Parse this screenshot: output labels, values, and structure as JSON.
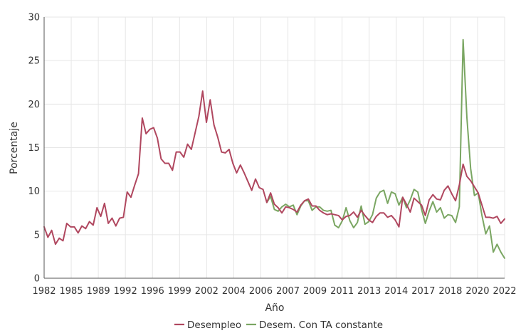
{
  "chart_data": {
    "type": "line",
    "title": "",
    "xlabel": "Año",
    "ylabel": "Porcentaje",
    "ylim": [
      0,
      30
    ],
    "yticks": [
      0,
      5,
      10,
      15,
      20,
      25,
      30
    ],
    "xticks": [
      "1982",
      "1985",
      "1989",
      "1992",
      "1996",
      "1999",
      "2002",
      "2004",
      "2006",
      "2007",
      "2009",
      "2011",
      "2013",
      "2014",
      "2017",
      "2018",
      "2020",
      "2022"
    ],
    "grid": true,
    "legend_position": "bottom",
    "series": [
      {
        "name": "Desempleo",
        "color": "#b0475f",
        "values": [
          5.9,
          4.7,
          5.5,
          3.9,
          4.6,
          4.3,
          6.3,
          5.9,
          5.9,
          5.2,
          6.0,
          5.7,
          6.5,
          6.1,
          8.1,
          7.1,
          8.6,
          6.3,
          6.9,
          6.0,
          6.9,
          7.0,
          9.9,
          9.3,
          10.7,
          12.0,
          18.4,
          16.6,
          17.1,
          17.3,
          16.1,
          13.7,
          13.2,
          13.2,
          12.4,
          14.5,
          14.5,
          13.9,
          15.4,
          14.8,
          16.7,
          18.6,
          21.5,
          17.9,
          20.5,
          17.6,
          16.2,
          14.5,
          14.4,
          14.8,
          13.2,
          12.1,
          13.0,
          12.1,
          11.1,
          10.1,
          11.4,
          10.4,
          10.2,
          8.7,
          9.8,
          8.5,
          8.1,
          7.5,
          8.2,
          8.1,
          7.9,
          7.6,
          8.4,
          8.9,
          9.1,
          8.3,
          8.3,
          7.8,
          7.5,
          7.3,
          7.4,
          7.3,
          7.2,
          6.7,
          7.1,
          7.2,
          7.6,
          7.0,
          7.8,
          7.2,
          6.7,
          6.4,
          7.1,
          7.5,
          7.5,
          7.0,
          7.2,
          6.7,
          5.9,
          9.3,
          8.5,
          7.6,
          9.2,
          8.8,
          8.4,
          7.2,
          9.0,
          9.6,
          9.1,
          9.0,
          10.1,
          10.6,
          9.7,
          8.9,
          10.7,
          13.1,
          11.7,
          11.2,
          10.5,
          9.8,
          8.4,
          7.0,
          7.0,
          6.9,
          7.1,
          6.3,
          6.8
        ]
      },
      {
        "name": "Desem. Con TA constante",
        "color": "#7aa662",
        "start_index": 59,
        "values": [
          8.7,
          9.4,
          7.9,
          7.7,
          8.2,
          8.5,
          8.2,
          8.4,
          7.3,
          8.3,
          8.9,
          8.9,
          7.8,
          8.2,
          8.2,
          7.8,
          7.7,
          7.8,
          6.1,
          5.8,
          6.6,
          8.1,
          6.6,
          5.8,
          6.4,
          8.3,
          6.2,
          6.5,
          7.3,
          9.2,
          9.9,
          10.1,
          8.6,
          9.9,
          9.7,
          8.4,
          9.3,
          8.1,
          9.0,
          10.2,
          9.9,
          7.9,
          6.3,
          7.7,
          8.8,
          7.6,
          8.1,
          6.9,
          7.3,
          7.2,
          6.4,
          8.2,
          27.4,
          18.5,
          12.6,
          9.5,
          9.8,
          7.2,
          5.1,
          6.0,
          3.0,
          3.9,
          3.0,
          2.3
        ]
      }
    ]
  }
}
